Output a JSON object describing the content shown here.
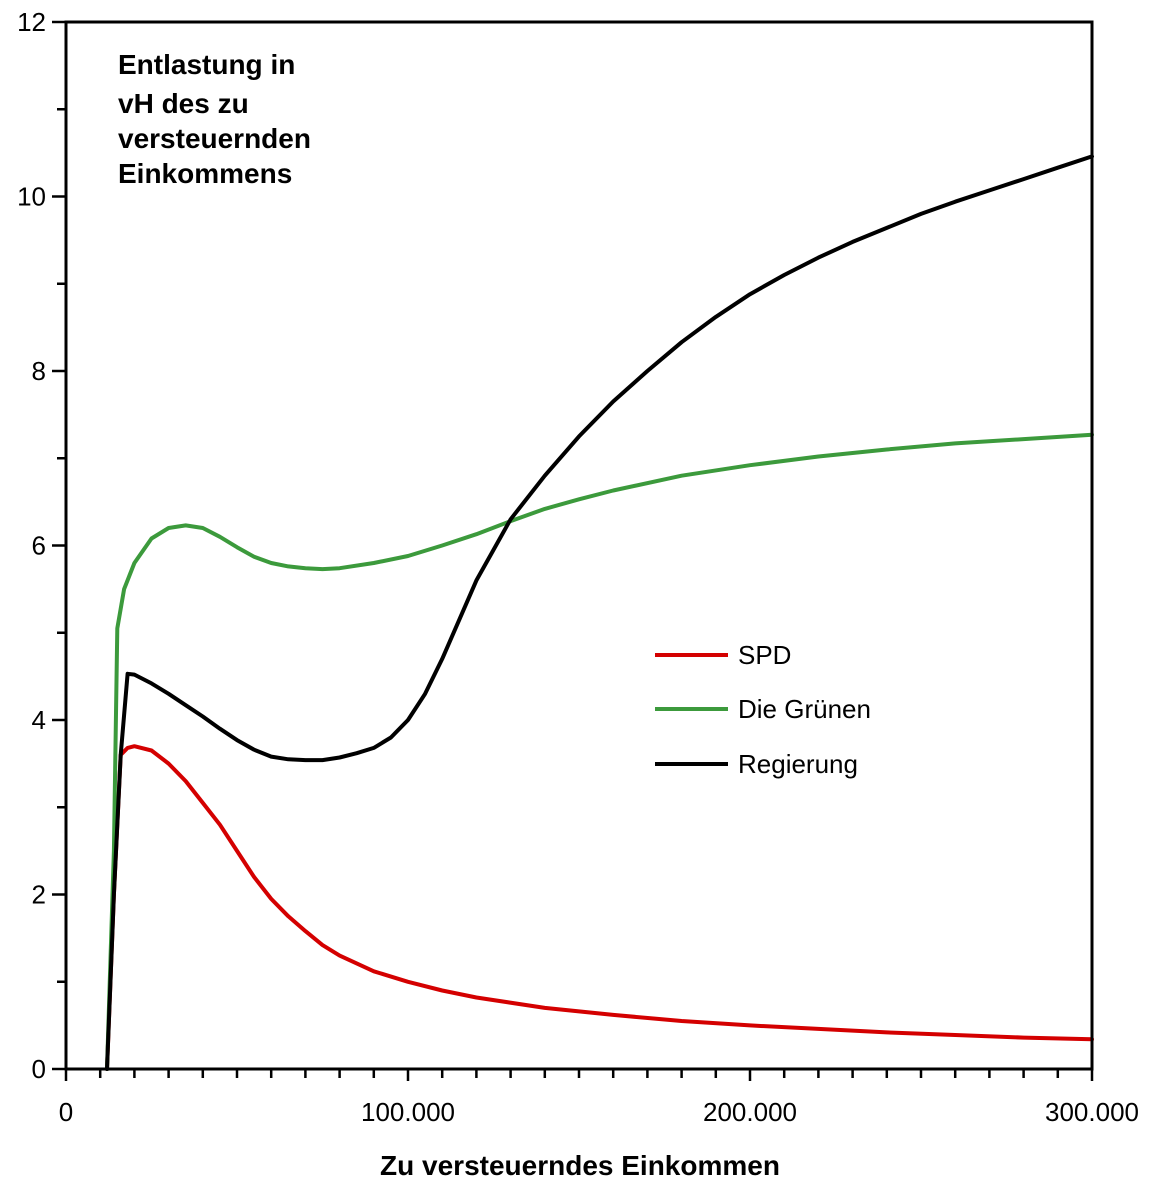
{
  "chart_data": {
    "type": "line",
    "title_lines": [
      "Entlastung in",
      "vH des zu",
      "versteuernden",
      "Einkommens"
    ],
    "xlabel": "Zu versteuerndes Einkommen",
    "ylabel": "",
    "xlim": [
      0,
      300000
    ],
    "ylim": [
      0,
      12
    ],
    "x_ticks": [
      0,
      100000,
      200000,
      300000
    ],
    "x_tick_labels": [
      "0",
      "100.000",
      "200.000",
      "300.000"
    ],
    "y_ticks": [
      0,
      2,
      4,
      6,
      8,
      10,
      12
    ],
    "y_tick_labels": [
      "0",
      "2",
      "4",
      "6",
      "8",
      "10",
      "12"
    ],
    "x_minor_step": 10000,
    "y_minor_step": 1,
    "grid": false,
    "legend_position": "center-right",
    "series": [
      {
        "name": "SPD",
        "color": "#d40000",
        "points": [
          [
            12000,
            0
          ],
          [
            14000,
            2.0
          ],
          [
            16000,
            3.6
          ],
          [
            18000,
            3.68
          ],
          [
            20000,
            3.7
          ],
          [
            25000,
            3.65
          ],
          [
            30000,
            3.5
          ],
          [
            35000,
            3.3
          ],
          [
            40000,
            3.05
          ],
          [
            45000,
            2.8
          ],
          [
            50000,
            2.5
          ],
          [
            55000,
            2.2
          ],
          [
            60000,
            1.95
          ],
          [
            65000,
            1.75
          ],
          [
            70000,
            1.58
          ],
          [
            75000,
            1.42
          ],
          [
            80000,
            1.3
          ],
          [
            90000,
            1.12
          ],
          [
            100000,
            1.0
          ],
          [
            110000,
            0.9
          ],
          [
            120000,
            0.82
          ],
          [
            140000,
            0.7
          ],
          [
            160000,
            0.62
          ],
          [
            180000,
            0.55
          ],
          [
            200000,
            0.5
          ],
          [
            220000,
            0.46
          ],
          [
            240000,
            0.42
          ],
          [
            260000,
            0.39
          ],
          [
            280000,
            0.36
          ],
          [
            300000,
            0.34
          ]
        ]
      },
      {
        "name": "Die Grünen",
        "color": "#3c9a3c",
        "points": [
          [
            12000,
            0
          ],
          [
            14000,
            2.5
          ],
          [
            15000,
            5.05
          ],
          [
            17000,
            5.5
          ],
          [
            20000,
            5.8
          ],
          [
            25000,
            6.08
          ],
          [
            30000,
            6.2
          ],
          [
            35000,
            6.23
          ],
          [
            40000,
            6.2
          ],
          [
            45000,
            6.1
          ],
          [
            50000,
            5.98
          ],
          [
            55000,
            5.87
          ],
          [
            60000,
            5.8
          ],
          [
            65000,
            5.76
          ],
          [
            70000,
            5.74
          ],
          [
            75000,
            5.73
          ],
          [
            80000,
            5.74
          ],
          [
            90000,
            5.8
          ],
          [
            100000,
            5.88
          ],
          [
            110000,
            6.0
          ],
          [
            120000,
            6.13
          ],
          [
            130000,
            6.28
          ],
          [
            140000,
            6.42
          ],
          [
            150000,
            6.53
          ],
          [
            160000,
            6.63
          ],
          [
            180000,
            6.8
          ],
          [
            200000,
            6.92
          ],
          [
            220000,
            7.02
          ],
          [
            240000,
            7.1
          ],
          [
            260000,
            7.17
          ],
          [
            280000,
            7.22
          ],
          [
            300000,
            7.27
          ]
        ]
      },
      {
        "name": "Regierung",
        "color": "#000000",
        "points": [
          [
            12000,
            0
          ],
          [
            14000,
            2.0
          ],
          [
            16000,
            3.6
          ],
          [
            18000,
            4.53
          ],
          [
            20000,
            4.52
          ],
          [
            25000,
            4.42
          ],
          [
            30000,
            4.3
          ],
          [
            35000,
            4.17
          ],
          [
            40000,
            4.04
          ],
          [
            45000,
            3.9
          ],
          [
            50000,
            3.77
          ],
          [
            55000,
            3.66
          ],
          [
            60000,
            3.58
          ],
          [
            65000,
            3.55
          ],
          [
            70000,
            3.54
          ],
          [
            75000,
            3.54
          ],
          [
            80000,
            3.57
          ],
          [
            85000,
            3.62
          ],
          [
            90000,
            3.68
          ],
          [
            95000,
            3.8
          ],
          [
            100000,
            4.0
          ],
          [
            105000,
            4.3
          ],
          [
            110000,
            4.7
          ],
          [
            115000,
            5.15
          ],
          [
            120000,
            5.6
          ],
          [
            125000,
            5.95
          ],
          [
            130000,
            6.3
          ],
          [
            140000,
            6.8
          ],
          [
            150000,
            7.25
          ],
          [
            160000,
            7.65
          ],
          [
            170000,
            8.0
          ],
          [
            180000,
            8.33
          ],
          [
            190000,
            8.62
          ],
          [
            200000,
            8.88
          ],
          [
            210000,
            9.1
          ],
          [
            220000,
            9.3
          ],
          [
            230000,
            9.48
          ],
          [
            240000,
            9.64
          ],
          [
            250000,
            9.8
          ],
          [
            260000,
            9.94
          ],
          [
            270000,
            10.07
          ],
          [
            280000,
            10.2
          ],
          [
            290000,
            10.33
          ],
          [
            300000,
            10.46
          ]
        ]
      }
    ]
  }
}
